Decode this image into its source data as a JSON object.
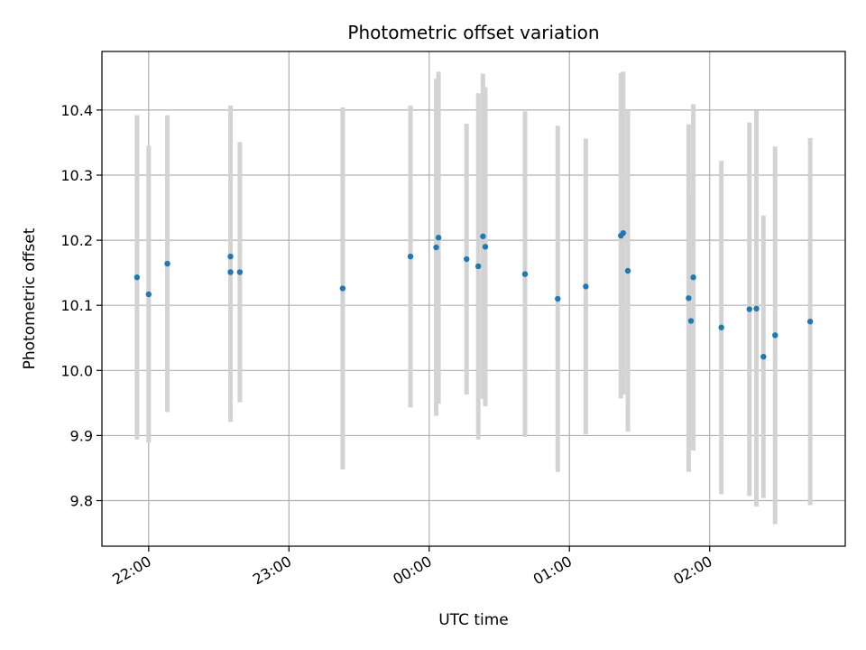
{
  "chart_data": {
    "type": "scatter",
    "title": "Photometric offset variation",
    "xlabel": "UTC time",
    "ylabel": "Photometric offset",
    "x_unit": "UTC time",
    "xlim": [
      "21:40",
      "02:58"
    ],
    "ylim": [
      9.73,
      10.49
    ],
    "x_ticks": [
      "22:00",
      "23:00",
      "00:00",
      "01:00",
      "02:00"
    ],
    "y_ticks": [
      "9.8",
      "9.9",
      "10.0",
      "10.1",
      "10.2",
      "10.3",
      "10.4"
    ],
    "grid": true,
    "marker_color": "#1f77b4",
    "errorbar_color": "#d3d3d3",
    "points": [
      {
        "x": "21:55",
        "y": 10.143,
        "err": 0.249
      },
      {
        "x": "22:00",
        "y": 10.117,
        "err": 0.228
      },
      {
        "x": "22:08",
        "y": 10.164,
        "err": 0.228
      },
      {
        "x": "22:35",
        "y": 10.175,
        "err": 0.232
      },
      {
        "x": "22:35",
        "y": 10.151,
        "err": 0.23
      },
      {
        "x": "22:39",
        "y": 10.151,
        "err": 0.2
      },
      {
        "x": "23:23",
        "y": 10.126,
        "err": 0.278
      },
      {
        "x": "23:52",
        "y": 10.175,
        "err": 0.232
      },
      {
        "x": "00:03",
        "y": 10.189,
        "err": 0.259
      },
      {
        "x": "00:04",
        "y": 10.204,
        "err": 0.255
      },
      {
        "x": "00:16",
        "y": 10.171,
        "err": 0.208
      },
      {
        "x": "00:21",
        "y": 10.16,
        "err": 0.266
      },
      {
        "x": "00:23",
        "y": 10.206,
        "err": 0.25
      },
      {
        "x": "00:24",
        "y": 10.19,
        "err": 0.245
      },
      {
        "x": "00:41",
        "y": 10.148,
        "err": 0.25
      },
      {
        "x": "00:55",
        "y": 10.11,
        "err": 0.266
      },
      {
        "x": "01:07",
        "y": 10.129,
        "err": 0.227
      },
      {
        "x": "01:22",
        "y": 10.207,
        "err": 0.25
      },
      {
        "x": "01:23",
        "y": 10.211,
        "err": 0.248
      },
      {
        "x": "01:25",
        "y": 10.153,
        "err": 0.247
      },
      {
        "x": "01:51",
        "y": 10.111,
        "err": 0.267
      },
      {
        "x": "01:53",
        "y": 10.143,
        "err": 0.266
      },
      {
        "x": "01:52",
        "y": 10.076,
        "err": 0.196
      },
      {
        "x": "02:05",
        "y": 10.066,
        "err": 0.256
      },
      {
        "x": "02:17",
        "y": 10.094,
        "err": 0.287
      },
      {
        "x": "02:20",
        "y": 10.095,
        "err": 0.304
      },
      {
        "x": "02:23",
        "y": 10.021,
        "err": 0.217
      },
      {
        "x": "02:28",
        "y": 10.054,
        "err": 0.29
      },
      {
        "x": "02:43",
        "y": 10.075,
        "err": 0.282
      }
    ]
  }
}
